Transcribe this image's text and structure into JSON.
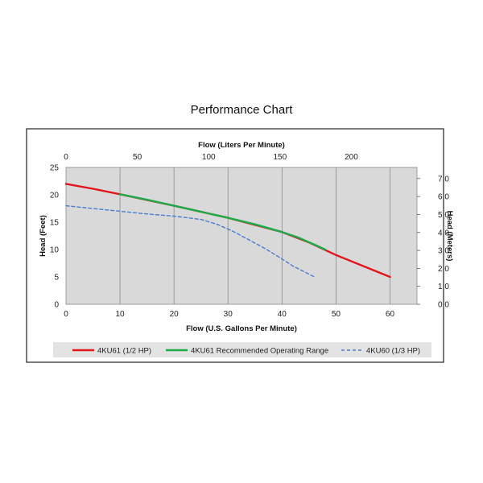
{
  "chart_data": {
    "type": "line",
    "title": "Performance Chart",
    "xlabel": "Flow (U.S. Gallons Per Minute)",
    "ylabel": "Head (Feet)",
    "x2label": "Flow (Liters Per Minute)",
    "y2label": "Head (Meters)",
    "xlim": [
      0,
      65
    ],
    "ylim": [
      0,
      25
    ],
    "x2lim": [
      0,
      246
    ],
    "y2lim": [
      0,
      7.62
    ],
    "xticks": [
      0,
      10,
      20,
      30,
      40,
      50,
      60
    ],
    "yticks": [
      0,
      5,
      10,
      15,
      20,
      25
    ],
    "x2ticks": [
      0,
      50,
      100,
      150,
      200
    ],
    "y2ticks": [
      "0.0",
      "1.0",
      "2.0",
      "3.0",
      "4.0",
      "5.0",
      "6.0",
      "7.0"
    ],
    "grid": true,
    "legend_position": "bottom",
    "series": [
      {
        "name": "4KU61 (1/2 HP)",
        "color": "#e3141b",
        "style": "solid",
        "x": [
          0,
          5,
          10,
          20,
          30,
          40,
          45,
          50,
          55,
          60
        ],
        "y": [
          22,
          21.1,
          20.1,
          18,
          15.8,
          13.2,
          11.3,
          9,
          7,
          5
        ]
      },
      {
        "name": "4KU61 Recommended Operating Range",
        "color": "#1faa4a",
        "style": "solid",
        "x": [
          10,
          15,
          20,
          25,
          30,
          35,
          40,
          43,
          46,
          48
        ],
        "y": [
          20.1,
          19.1,
          18,
          16.9,
          15.8,
          14.6,
          13.2,
          12.2,
          10.9,
          10
        ]
      },
      {
        "name": "4KU60 (1/3 HP)",
        "color": "#4a7fcf",
        "style": "dashed",
        "x": [
          0,
          5,
          10,
          15,
          20,
          25,
          28,
          31,
          34,
          37,
          40,
          42,
          46
        ],
        "y": [
          18,
          17.5,
          17,
          16.5,
          16.1,
          15.5,
          14.6,
          13.3,
          11.7,
          10.1,
          8.3,
          7,
          5
        ]
      }
    ]
  }
}
